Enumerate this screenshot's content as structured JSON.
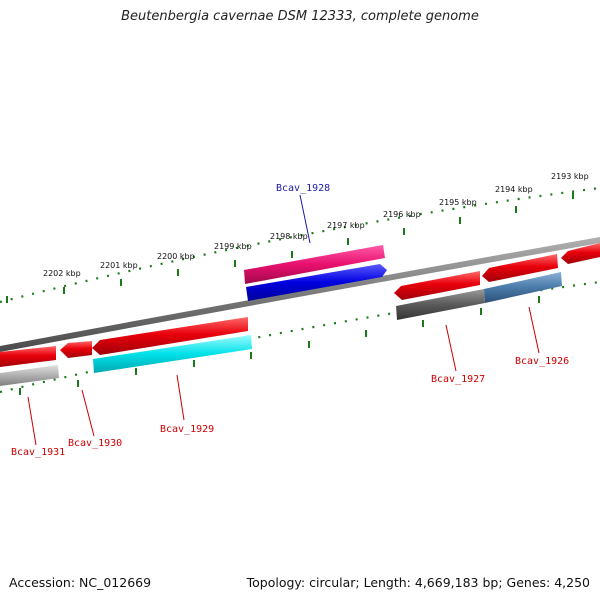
{
  "title": "Beutenbergia cavernae DSM 12333, complete genome",
  "footer": {
    "accession": "Accession: NC_012669",
    "topology": "Topology: circular; Length: 4,669,183 bp; Genes: 4,250"
  },
  "ticks": [
    "2193 kbp",
    "2194 kbp",
    "2195 kbp",
    "2196 kbp",
    "2197 kbp",
    "2198 kbp",
    "2199 kbp",
    "2200 kbp",
    "2201 kbp",
    "2202 kbp"
  ],
  "genes": {
    "bcav_1926": "Bcav_1926",
    "bcav_1927": "Bcav_1927",
    "bcav_1928": "Bcav_1928",
    "bcav_1929": "Bcav_1929",
    "bcav_1930": "Bcav_1930",
    "bcav_1931": "Bcav_1931"
  },
  "colors": {
    "cds": "#e8000b",
    "highlight_label": "#1a1aa8",
    "label": "#cc0000",
    "tick": "#1a7a1a",
    "backbone": "#7a7a7a",
    "gene_1928_top": "#e8106e",
    "gene_1928_bottom": "#0000e0",
    "gene_1929_bottom": "#00e0e8",
    "gene_1926_bottom": "#4a7aa8",
    "gene_1927_bottom": "#5a5a5a",
    "gene_1931_bottom": "#b0b0b0"
  }
}
